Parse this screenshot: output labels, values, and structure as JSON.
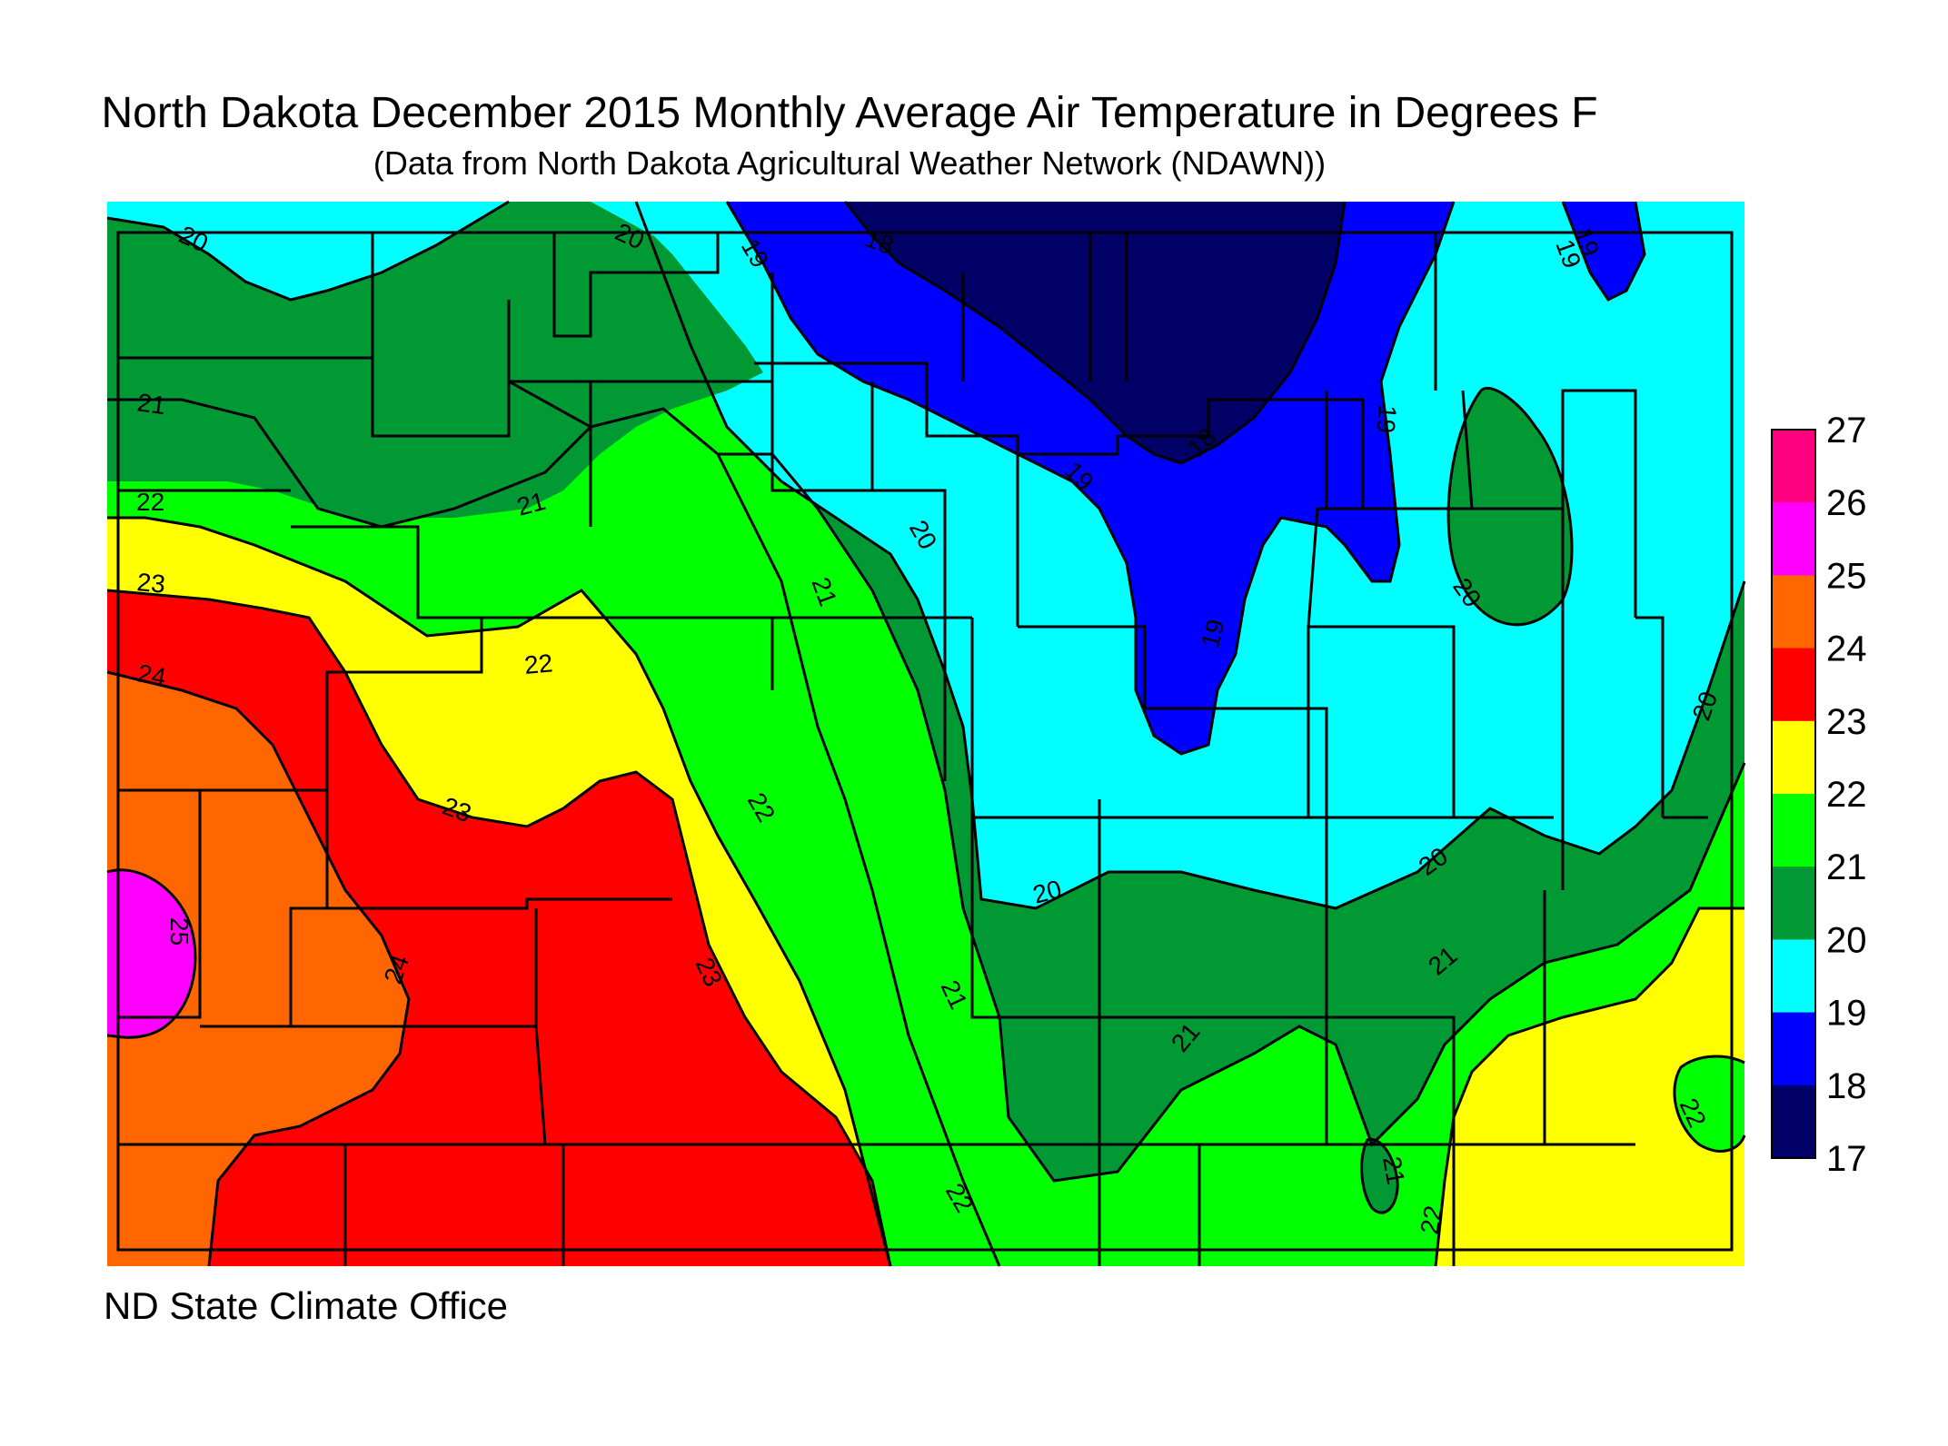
{
  "title": "North Dakota December 2015 Monthly Average Air Temperature in Degrees F",
  "subtitle": "(Data from North Dakota Agricultural Weather Network (NDAWN))",
  "credit": "ND State Climate Office",
  "legend": {
    "ticks": [
      "27",
      "26",
      "25",
      "24",
      "23",
      "22",
      "21",
      "20",
      "19",
      "18",
      "17"
    ],
    "bands": [
      {
        "range": "26-27",
        "color": "#ff0080"
      },
      {
        "range": "25-26",
        "color": "#ff00ff"
      },
      {
        "range": "24-25",
        "color": "#ff6600"
      },
      {
        "range": "23-24",
        "color": "#ff0000"
      },
      {
        "range": "22-23",
        "color": "#ffff00"
      },
      {
        "range": "21-22",
        "color": "#00ff00"
      },
      {
        "range": "20-21",
        "color": "#009933"
      },
      {
        "range": "19-20",
        "color": "#00ffff"
      },
      {
        "range": "18-19",
        "color": "#0000ff"
      },
      {
        "range": "17-18",
        "color": "#000066"
      }
    ]
  },
  "contour_labels": {
    "l20a": "20",
    "l20b": "20",
    "l19a": "19",
    "l18a": "18",
    "l19b": "19",
    "l21a": "21",
    "l21b": "21",
    "l22a": "22",
    "l23a": "23",
    "l24a": "24",
    "l22b": "22",
    "l19c": "19",
    "l19d": "19",
    "l18b": "18",
    "l19e": "19",
    "l20c": "20",
    "l21c": "21",
    "l20d": "20",
    "l19f": "19",
    "l23b": "23",
    "l22c": "22",
    "l25a": "25",
    "l24b": "24",
    "l23c": "23",
    "l21d": "21",
    "l20e": "20",
    "l20f": "20",
    "l21e": "21",
    "l21f": "21",
    "l22d": "22",
    "l21g": "21",
    "l22e": "22",
    "l20g": "20",
    "l22f": "22"
  }
}
